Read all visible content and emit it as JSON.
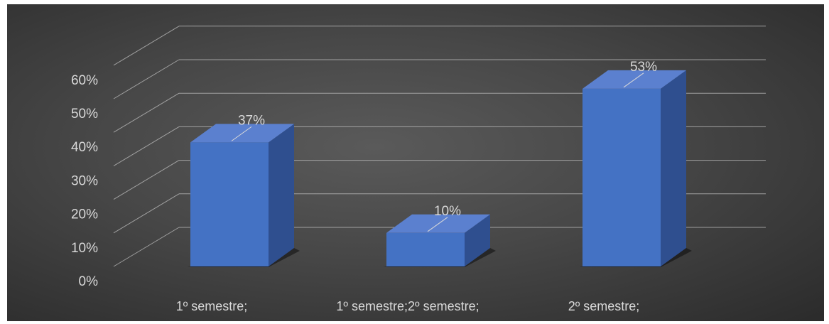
{
  "chart_data": {
    "type": "bar",
    "title": "",
    "categories": [
      "1º semestre;",
      "1º semestre;2º semestre;",
      "2º semestre;"
    ],
    "values": [
      37,
      10,
      53
    ],
    "data_labels": [
      "37%",
      "10%",
      "53%"
    ],
    "ylim": [
      0,
      60
    ],
    "yticks": [
      0,
      10,
      20,
      30,
      40,
      50,
      60
    ],
    "ytick_labels": [
      "0%",
      "10%",
      "20%",
      "30%",
      "40%",
      "50%",
      "60%"
    ],
    "grid": true,
    "legend": "none",
    "three_d": true,
    "colors": {
      "bar_front": "#4472c4",
      "bar_side": "#2f4f8f",
      "bar_top": "#5b80cf",
      "background": "#404040",
      "grid": "#bfbfbf",
      "text": "#d9d9d9"
    }
  }
}
